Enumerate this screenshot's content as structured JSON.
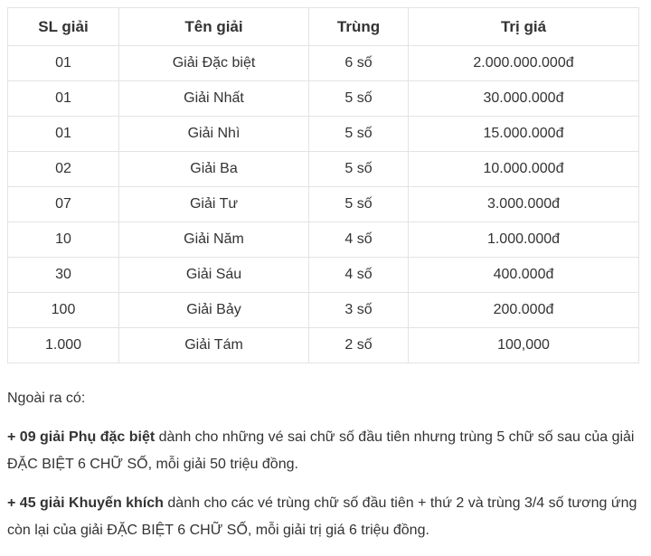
{
  "table": {
    "headers": [
      "SL giải",
      "Tên giải",
      "Trùng",
      "Trị giá"
    ],
    "rows": [
      [
        "01",
        "Giải Đặc biệt",
        "6 số",
        "2.000.000.000đ"
      ],
      [
        "01",
        "Giải Nhất",
        "5 số",
        "30.000.000đ"
      ],
      [
        "01",
        "Giải Nhì",
        "5 số",
        "15.000.000đ"
      ],
      [
        "02",
        "Giải Ba",
        "5 số",
        "10.000.000đ"
      ],
      [
        "07",
        "Giải Tư",
        "5 số",
        "3.000.000đ"
      ],
      [
        "10",
        "Giải Năm",
        "4 số",
        "1.000.000đ"
      ],
      [
        "30",
        "Giải Sáu",
        "4 số",
        "400.000đ"
      ],
      [
        "100",
        "Giải Bảy",
        "3 số",
        "200.000đ"
      ],
      [
        "1.000",
        "Giải Tám",
        "2 số",
        "100,000"
      ]
    ]
  },
  "notes": {
    "intro": "Ngoài ra có:",
    "items": [
      {
        "bold": "+ 09 giải Phụ đặc biệt",
        "text": " dành cho những vé sai chữ số đầu tiên nhưng trùng 5 chữ số sau của giải ĐẶC BIỆT 6 CHỮ SỐ, mỗi giải 50 triệu đồng."
      },
      {
        "bold": "+ 45 giải Khuyến khích",
        "text": " dành cho các vé trùng chữ số đầu tiên + thứ 2 và trùng 3/4 số tương ứng còn lại của giải ĐẶC BIỆT 6 CHỮ SỐ, mỗi giải trị giá 6 triệu đồng."
      }
    ]
  }
}
